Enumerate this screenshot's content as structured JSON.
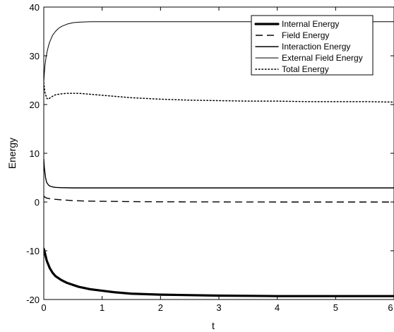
{
  "chart_data": {
    "type": "line",
    "title": "",
    "xlabel": "t",
    "ylabel": "Energy",
    "xlim": [
      0,
      6
    ],
    "ylim": [
      -20,
      40
    ],
    "xticks": [
      0,
      1,
      2,
      3,
      4,
      5,
      6
    ],
    "yticks": [
      -20,
      -10,
      0,
      10,
      20,
      30,
      40
    ],
    "xtick_labels": [
      "0",
      "1",
      "2",
      "3",
      "4",
      "5",
      "6"
    ],
    "ytick_labels": [
      "-20",
      "-10",
      "0",
      "10",
      "20",
      "30",
      "40"
    ],
    "grid": false,
    "legend_position": "top-right",
    "series": [
      {
        "name": "Internal Energy",
        "style": "solid-thick",
        "color": "#000000",
        "x": [
          0,
          0.02,
          0.05,
          0.1,
          0.15,
          0.2,
          0.3,
          0.4,
          0.5,
          0.6,
          0.8,
          1.0,
          1.2,
          1.5,
          2.0,
          2.5,
          3.0,
          3.5,
          4.0,
          4.5,
          5.0,
          5.5,
          6.0
        ],
        "y": [
          -9.6,
          -10.5,
          -12.0,
          -13.5,
          -14.5,
          -15.2,
          -16.0,
          -16.6,
          -17.0,
          -17.4,
          -17.9,
          -18.2,
          -18.5,
          -18.8,
          -19.0,
          -19.1,
          -19.2,
          -19.25,
          -19.3,
          -19.3,
          -19.3,
          -19.3,
          -19.3
        ]
      },
      {
        "name": "Field Energy",
        "style": "dashed",
        "color": "#000000",
        "x": [
          0,
          0.02,
          0.05,
          0.1,
          0.2,
          0.3,
          0.5,
          0.7,
          1.0,
          1.5,
          2.0,
          2.5,
          3.0,
          4.0,
          5.0,
          6.0
        ],
        "y": [
          1.2,
          1.0,
          0.8,
          0.7,
          0.55,
          0.45,
          0.3,
          0.2,
          0.15,
          0.08,
          0.05,
          0.03,
          0.02,
          0.0,
          0.0,
          0.0
        ]
      },
      {
        "name": "Interaction Energy",
        "style": "solid",
        "color": "#000000",
        "x": [
          0,
          0.01,
          0.03,
          0.05,
          0.08,
          0.1,
          0.15,
          0.2,
          0.3,
          0.5,
          0.7,
          1.0,
          1.5,
          2.0,
          3.0,
          4.0,
          5.0,
          6.0
        ],
        "y": [
          8.8,
          7.0,
          5.0,
          4.0,
          3.5,
          3.3,
          3.1,
          3.0,
          2.95,
          2.9,
          2.9,
          2.9,
          2.9,
          2.9,
          2.9,
          2.9,
          2.9,
          2.9
        ]
      },
      {
        "name": "External Field Energy",
        "style": "solid-thin",
        "color": "#000000",
        "x": [
          0,
          0.01,
          0.02,
          0.04,
          0.06,
          0.08,
          0.1,
          0.15,
          0.2,
          0.25,
          0.3,
          0.4,
          0.5,
          0.6,
          0.8,
          1.0,
          1.5,
          2.0,
          3.0,
          4.0,
          5.0,
          6.0
        ],
        "y": [
          24.5,
          26.5,
          28.0,
          29.8,
          31.0,
          32.0,
          32.8,
          34.2,
          35.0,
          35.6,
          36.0,
          36.5,
          36.8,
          36.9,
          37.0,
          37.0,
          37.0,
          37.0,
          37.0,
          37.0,
          37.0,
          37.0
        ]
      },
      {
        "name": "Total Energy",
        "style": "dotted",
        "color": "#000000",
        "x": [
          0,
          0.02,
          0.05,
          0.08,
          0.1,
          0.15,
          0.2,
          0.3,
          0.4,
          0.5,
          0.6,
          0.7,
          0.8,
          1.0,
          1.2,
          1.5,
          2.0,
          2.5,
          3.0,
          3.5,
          4.0,
          4.5,
          5.0,
          5.5,
          6.0
        ],
        "y": [
          24.5,
          22.5,
          21.3,
          21.1,
          21.3,
          21.7,
          22.0,
          22.2,
          22.3,
          22.3,
          22.3,
          22.2,
          22.1,
          21.9,
          21.7,
          21.4,
          21.1,
          20.9,
          20.8,
          20.7,
          20.7,
          20.6,
          20.6,
          20.6,
          20.5
        ]
      }
    ]
  }
}
